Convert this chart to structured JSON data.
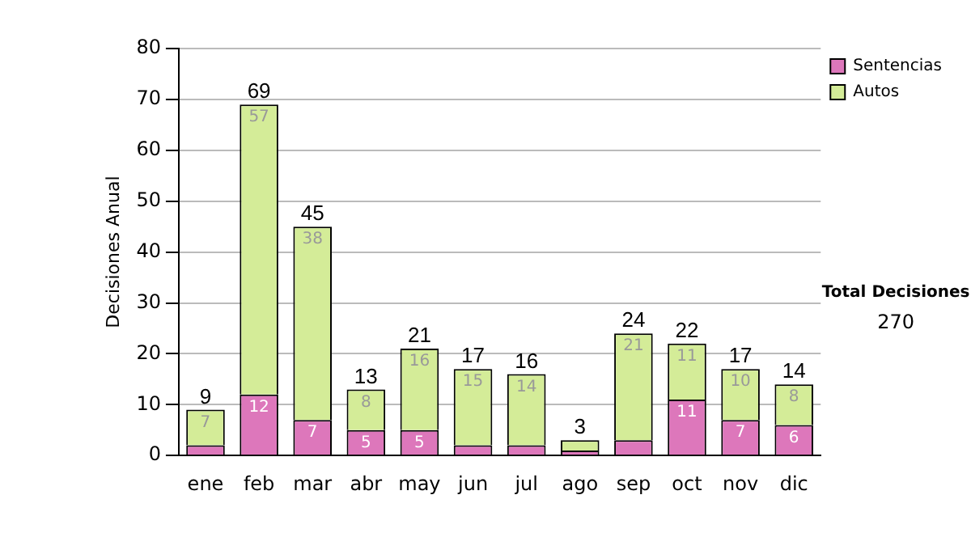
{
  "chart_data": {
    "type": "bar",
    "stacked": true,
    "ylabel": "Decisiones Anual",
    "categories": [
      "ene",
      "feb",
      "mar",
      "abr",
      "may",
      "jun",
      "jul",
      "ago",
      "sep",
      "oct",
      "nov",
      "dic"
    ],
    "series": [
      {
        "name": "Sentencias",
        "color": "#dd77bb",
        "values": [
          2,
          12,
          7,
          5,
          5,
          2,
          2,
          1,
          3,
          11,
          7,
          6
        ],
        "value_labels": [
          null,
          "12",
          "7",
          "5",
          "5",
          null,
          null,
          null,
          null,
          "11",
          "7",
          "6"
        ]
      },
      {
        "name": "Autos",
        "color": "#d4ec98",
        "values": [
          7,
          57,
          38,
          8,
          16,
          15,
          14,
          2,
          21,
          11,
          10,
          8
        ],
        "value_labels": [
          "7",
          "57",
          "38",
          "8",
          "16",
          "15",
          "14",
          null,
          "21",
          "11",
          "10",
          "8"
        ]
      }
    ],
    "totals": [
      "9",
      "69",
      "45",
      "13",
      "21",
      "17",
      "16",
      "3",
      "24",
      "22",
      "17",
      "14"
    ],
    "ylim": [
      0,
      80
    ],
    "yticks": [
      0,
      10,
      20,
      30,
      40,
      50,
      60,
      70,
      80
    ],
    "grid": "y",
    "legend": "right",
    "annotations": [
      "Total Decisiones",
      "270"
    ]
  }
}
